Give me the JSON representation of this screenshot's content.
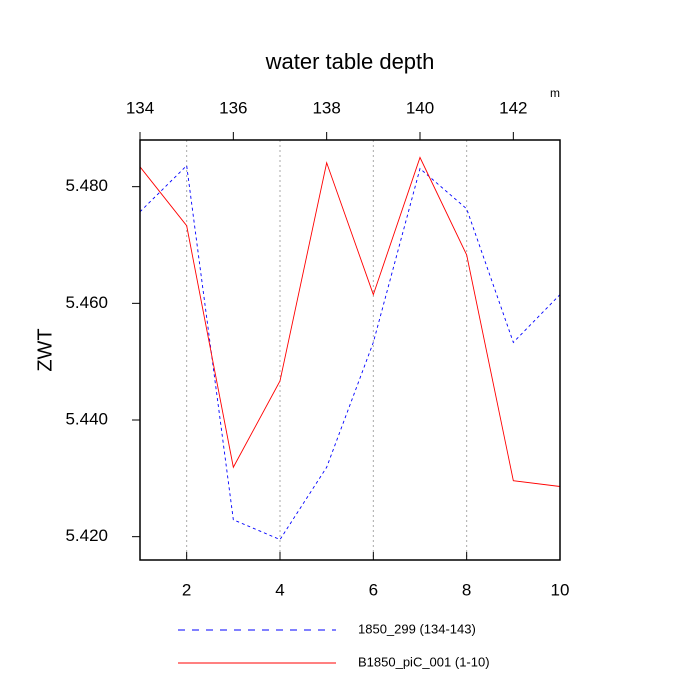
{
  "chart_data": {
    "type": "line",
    "title": "water table depth",
    "ylabel": "ZWT",
    "x2units": "m",
    "xlim": [
      1,
      10
    ],
    "xticks": [
      2,
      4,
      6,
      8,
      10
    ],
    "xtick_color": "#ff0000",
    "x2lim": [
      134,
      143
    ],
    "x2ticks": [
      134,
      136,
      138,
      140,
      142
    ],
    "x2tick_color": "#0000ff",
    "ylim": [
      5.416,
      5.488
    ],
    "yticks": [
      {
        "value": 5.42,
        "label": "5.420"
      },
      {
        "value": 5.44,
        "label": "5.440"
      },
      {
        "value": 5.46,
        "label": "5.460"
      },
      {
        "value": 5.48,
        "label": "5.480"
      }
    ],
    "grid": true,
    "series": [
      {
        "name": "1850_299 (134-143)",
        "color": "#0000ff",
        "line_style": "dashed",
        "axis": "x2",
        "x": [
          134,
          135,
          136,
          137,
          138,
          139,
          140,
          141,
          142,
          143
        ],
        "values": [
          5.4757,
          5.4836,
          5.4229,
          5.4195,
          5.4319,
          5.4533,
          5.4831,
          5.4762,
          5.4533,
          5.4615
        ]
      },
      {
        "name": "B1850_piC_001 (1-10)",
        "color": "#ff0000",
        "line_style": "solid",
        "x": [
          1,
          2,
          3,
          4,
          5,
          6,
          7,
          8,
          9,
          10
        ],
        "values": [
          5.4834,
          5.4733,
          5.4319,
          5.4467,
          5.4841,
          5.4615,
          5.485,
          5.4683,
          5.4296,
          5.4286
        ]
      }
    ]
  }
}
